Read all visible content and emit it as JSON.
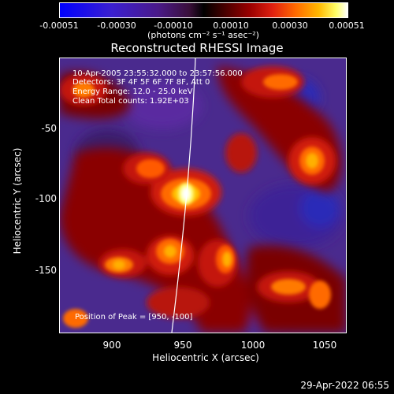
{
  "colorbar": {
    "ticks": [
      "-0.00051",
      "-0.00030",
      "-0.00010",
      "0.00010",
      "0.00030",
      "0.00051"
    ],
    "units": "(photons cm⁻² s⁻¹ asec⁻²)",
    "range": [
      -0.00051,
      0.00051
    ]
  },
  "plot": {
    "title": "Reconstructed RHESSI Image",
    "xlabel": "Heliocentric X (arcsec)",
    "ylabel": "Heliocentric Y (arcsec)",
    "xticks": [
      "900",
      "950",
      "1000",
      "1050"
    ],
    "yticks": [
      "-50",
      "-100",
      "-150"
    ],
    "xrange": [
      864,
      1051
    ],
    "yrange": [
      -195,
      -15
    ]
  },
  "info": {
    "time": "10-Apr-2005 23:55:32.000 to 23:57:56.000",
    "detectors": "Detectors: 3F 4F 5F 6F 7F 8F, Att 0",
    "energy": "Energy Range: 12.0 - 25.0 keV",
    "clean": "Clean    Total counts: 1.92E+03",
    "peak": "Position of Peak = [950, -100]"
  },
  "datestamp": "29-Apr-2022 06:55"
}
